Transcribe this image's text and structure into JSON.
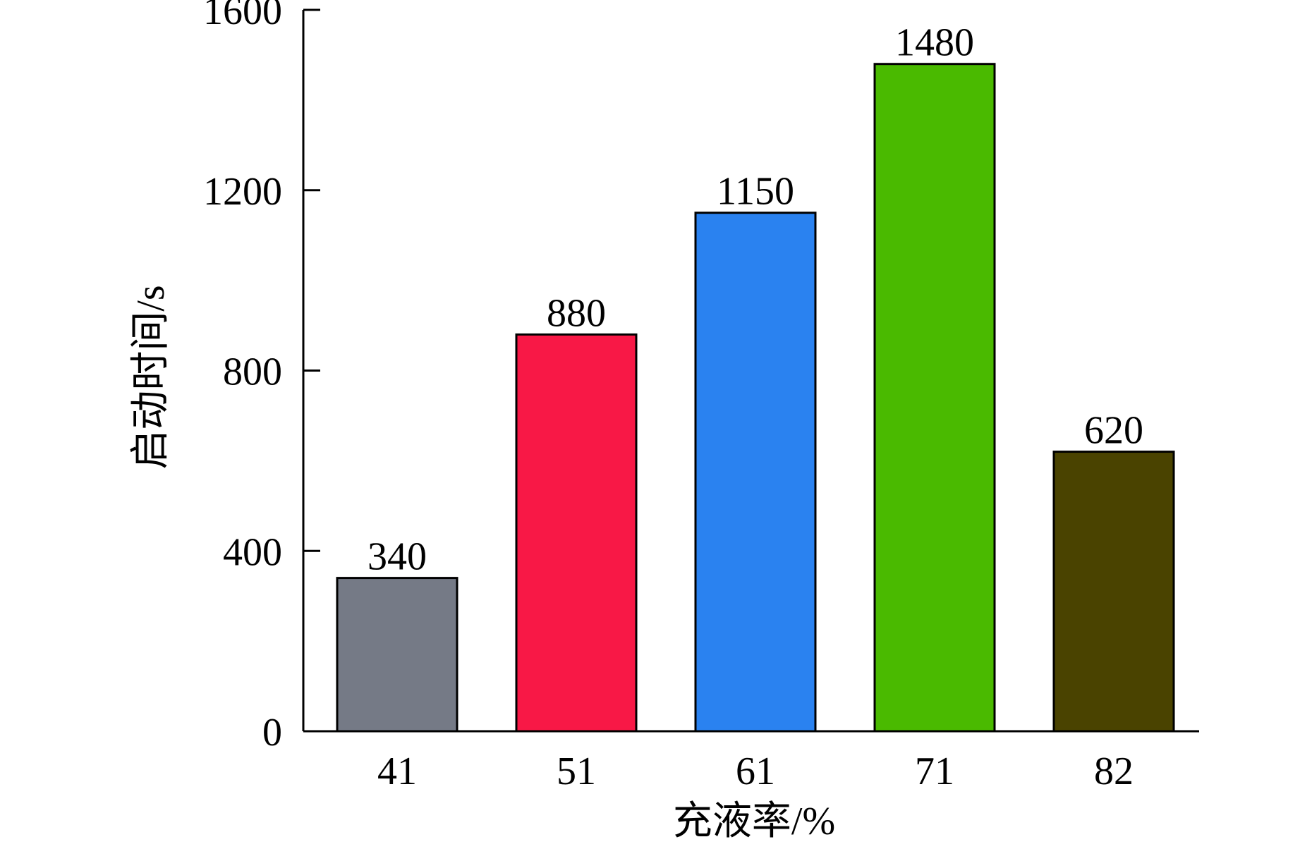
{
  "chart_data": {
    "type": "bar",
    "categories": [
      "41",
      "51",
      "61",
      "71",
      "82"
    ],
    "values": [
      340,
      880,
      1150,
      1480,
      620
    ],
    "data_labels": [
      "340",
      "880",
      "1150",
      "1480",
      "620"
    ],
    "bar_colors": [
      "#757a86",
      "#f81846",
      "#2a82f0",
      "#4aba00",
      "#4a4300"
    ],
    "title": "",
    "xlabel": "充液率/%",
    "ylabel": "启动时间/s",
    "ylim": [
      0,
      1600
    ],
    "yticks": [
      0,
      400,
      800,
      1200,
      1600
    ],
    "ytick_labels": [
      "0",
      "400",
      "800",
      "1200",
      "1600"
    ],
    "grid": false,
    "legend": "none"
  }
}
